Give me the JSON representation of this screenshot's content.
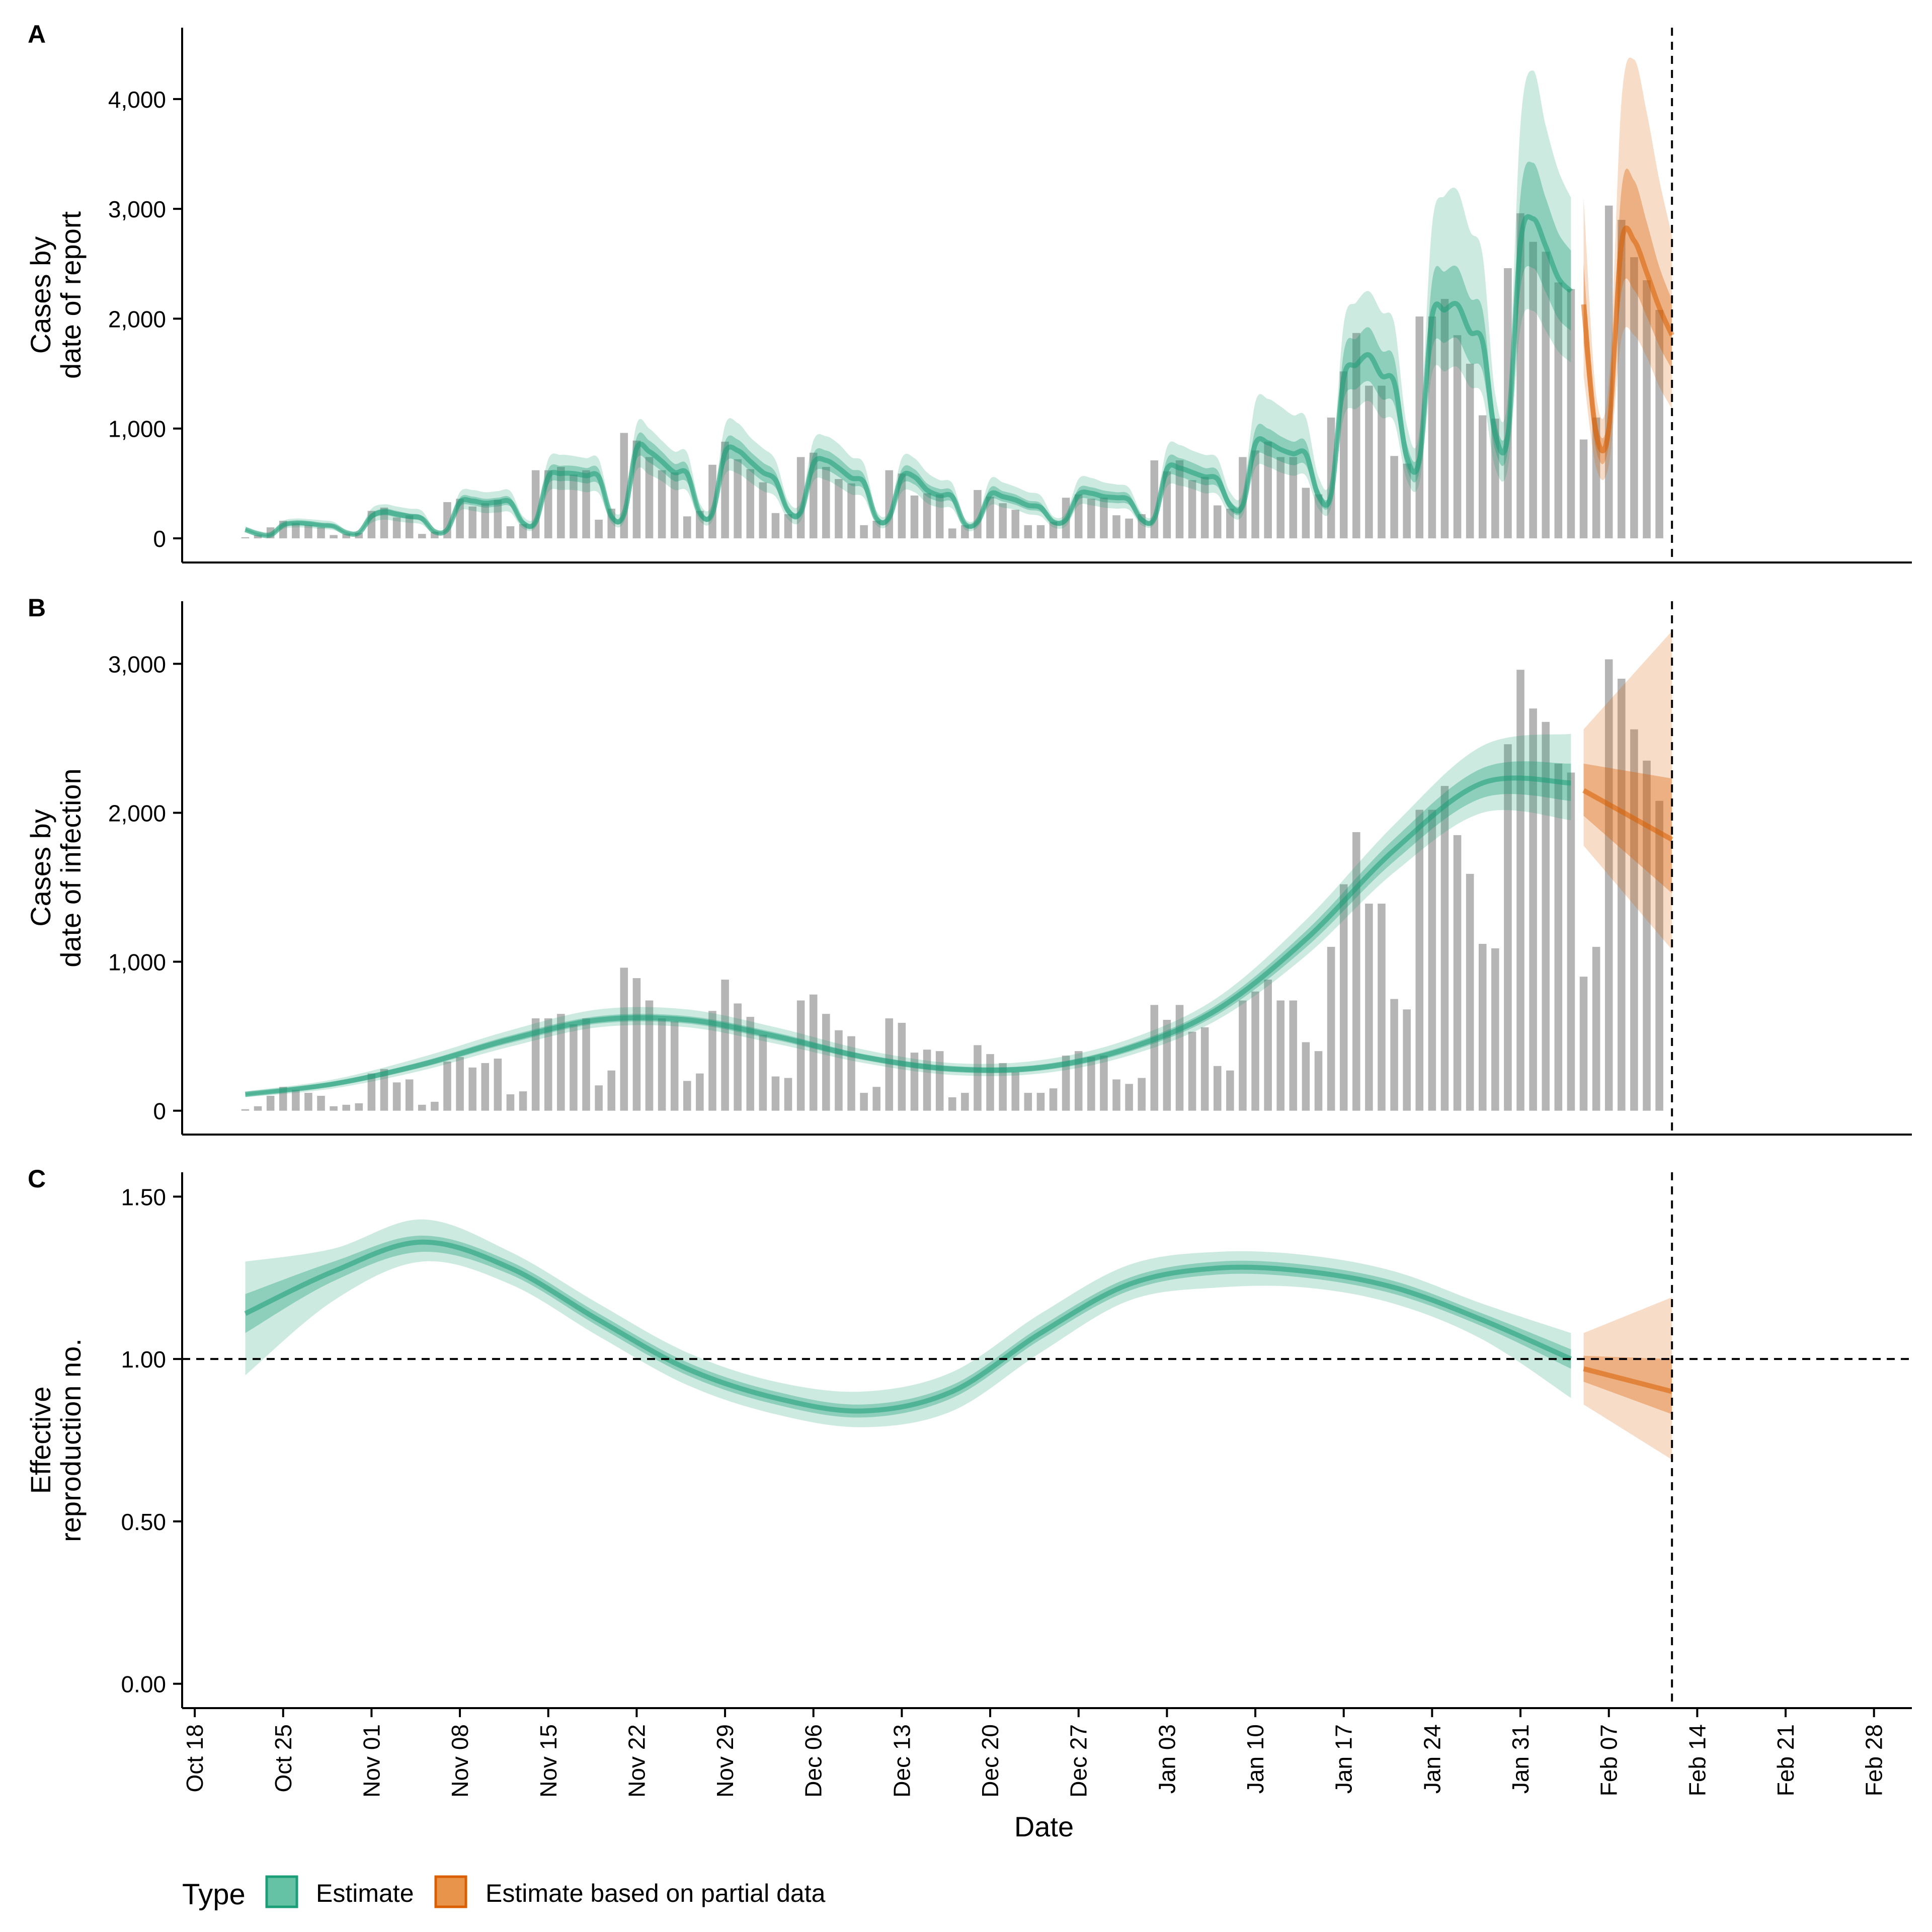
{
  "figure": {
    "xlabel": "Date",
    "legend": {
      "title": "Type",
      "position": "bottom-left",
      "items": [
        {
          "label": "Estimate",
          "fill": "#66c2a5",
          "stroke": "#1b9e77"
        },
        {
          "label": "Estimate based on partial data",
          "fill": "#e8944a",
          "stroke": "#d95f02"
        }
      ]
    },
    "colors": {
      "estimate": "#1b9e77",
      "partial": "#d95f02",
      "bars": "#b5b5b5"
    },
    "x_ticks": [
      "Oct 18",
      "Oct 25",
      "Nov 01",
      "Nov 08",
      "Nov 15",
      "Nov 22",
      "Nov 29",
      "Dec 06",
      "Dec 13",
      "Dec 20",
      "Dec 27",
      "Jan 03",
      "Jan 10",
      "Jan 17",
      "Jan 24",
      "Jan 31",
      "Feb 07",
      "Feb 14",
      "Feb 21",
      "Feb 28"
    ],
    "x_tick_dates": [
      "2020-10-18",
      "2020-10-25",
      "2020-11-01",
      "2020-11-08",
      "2020-11-15",
      "2020-11-22",
      "2020-11-29",
      "2020-12-06",
      "2020-12-13",
      "2020-12-20",
      "2020-12-27",
      "2021-01-03",
      "2021-01-10",
      "2021-01-17",
      "2021-01-24",
      "2021-01-31",
      "2021-02-07",
      "2021-02-14",
      "2021-02-21",
      "2021-02-28"
    ],
    "x_range": [
      "2020-10-17",
      "2021-03-03"
    ],
    "vline_date": "2021-02-12",
    "data_start": "2020-10-22",
    "estimate_end": "2021-02-04",
    "partial_start": "2021-02-05"
  },
  "chart_data": [
    {
      "panel": "A",
      "type": "bar",
      "ylabel": [
        "Cases by",
        "date of report"
      ],
      "ylim": [
        -220,
        4650
      ],
      "y_ticks": [
        0,
        1000,
        2000,
        3000,
        4000
      ],
      "y_tick_labels": [
        "0",
        "1,000",
        "2,000",
        "3,000",
        "4,000"
      ],
      "reported_cases": [
        10,
        30,
        100,
        160,
        140,
        120,
        100,
        30,
        40,
        50,
        250,
        280,
        190,
        210,
        40,
        60,
        330,
        360,
        290,
        320,
        350,
        110,
        130,
        620,
        620,
        650,
        580,
        620,
        170,
        270,
        960,
        890,
        740,
        620,
        600,
        200,
        250,
        670,
        880,
        720,
        630,
        510,
        230,
        220,
        740,
        780,
        650,
        540,
        500,
        120,
        160,
        620,
        590,
        390,
        410,
        400,
        90,
        120,
        440,
        380,
        320,
        260,
        120,
        120,
        150,
        370,
        400,
        360,
        370,
        210,
        180,
        220,
        710,
        610,
        710,
        530,
        560,
        300,
        270,
        740,
        800,
        880,
        740,
        740,
        460,
        400,
        1100,
        1520,
        1870,
        1390,
        1390,
        750,
        680,
        2020,
        2020,
        2180,
        1850,
        1590,
        1120,
        1090,
        2460,
        2960,
        2700,
        2610,
        2330,
        2270,
        900,
        1100,
        3030,
        2900,
        2560,
        2350,
        2080
      ],
      "median_estimate": [
        80,
        40,
        30,
        120,
        140,
        135,
        120,
        110,
        50,
        50,
        200,
        240,
        220,
        200,
        180,
        60,
        80,
        330,
        340,
        320,
        330,
        330,
        140,
        150,
        560,
        590,
        590,
        570,
        560,
        200,
        220,
        820,
        790,
        700,
        600,
        590,
        230,
        230,
        780,
        800,
        700,
        600,
        530,
        250,
        240,
        680,
        710,
        640,
        550,
        510,
        180,
        190,
        560,
        560,
        440,
        390,
        380,
        130,
        150,
        400,
        380,
        350,
        300,
        280,
        150,
        170,
        400,
        410,
        380,
        370,
        350,
        170,
        180,
        630,
        640,
        600,
        560,
        540,
        300,
        300,
        860,
        870,
        810,
        770,
        770,
        390,
        400,
        1460,
        1580,
        1670,
        1480,
        1420,
        740,
        720,
        2020,
        2080,
        2130,
        1880,
        1790,
        950,
        940,
        2690,
        2910,
        2660,
        2370,
        2250,
        2130,
        950,
        1000,
        2680,
        2710,
        2420,
        2100,
        1850
      ],
      "estimate_bands": {
        "outer_upper": [
          110,
          70,
          60,
          160,
          180,
          175,
          165,
          150,
          80,
          80,
          270,
          310,
          290,
          270,
          250,
          90,
          110,
          420,
          440,
          420,
          430,
          430,
          200,
          210,
          720,
          760,
          750,
          730,
          720,
          280,
          300,
          1040,
          1000,
          890,
          790,
          780,
          320,
          320,
          1030,
          1050,
          920,
          820,
          710,
          340,
          330,
          890,
          930,
          860,
          740,
          680,
          250,
          250,
          730,
          730,
          600,
          530,
          500,
          180,
          200,
          540,
          510,
          470,
          420,
          390,
          200,
          230,
          540,
          550,
          510,
          490,
          460,
          230,
          240,
          830,
          850,
          800,
          760,
          730,
          420,
          420,
          1240,
          1270,
          1200,
          1120,
          1100,
          560,
          570,
          1950,
          2150,
          2250,
          2060,
          1960,
          1030,
          980,
          2850,
          3120,
          3170,
          2800,
          2580,
          1310,
          1290,
          3770,
          4260,
          3760,
          3350,
          3100,
          3100,
          1300,
          1420,
          3980,
          4360,
          3880,
          3260,
          2760
        ],
        "outer_lower": [
          55,
          20,
          15,
          85,
          100,
          95,
          85,
          75,
          30,
          30,
          140,
          170,
          155,
          140,
          125,
          35,
          55,
          250,
          250,
          230,
          235,
          235,
          90,
          100,
          420,
          440,
          440,
          420,
          410,
          140,
          150,
          620,
          580,
          520,
          440,
          430,
          160,
          160,
          580,
          590,
          510,
          430,
          380,
          170,
          160,
          520,
          530,
          470,
          400,
          370,
          120,
          130,
          420,
          420,
          320,
          280,
          270,
          80,
          100,
          300,
          280,
          260,
          220,
          200,
          100,
          110,
          300,
          300,
          280,
          270,
          260,
          120,
          130,
          470,
          480,
          450,
          410,
          400,
          210,
          210,
          640,
          650,
          600,
          570,
          570,
          270,
          280,
          1100,
          1180,
          1250,
          1100,
          1060,
          530,
          510,
          1500,
          1520,
          1560,
          1380,
          1300,
          640,
          640,
          1920,
          2070,
          1890,
          1700,
          1600,
          1480,
          640,
          670,
          1820,
          1850,
          1650,
          1380,
          1180
        ],
        "inner_upper": [
          90,
          50,
          40,
          135,
          155,
          150,
          135,
          125,
          60,
          60,
          225,
          270,
          250,
          225,
          205,
          70,
          90,
          370,
          380,
          360,
          370,
          370,
          165,
          175,
          630,
          660,
          660,
          640,
          630,
          230,
          250,
          920,
          890,
          790,
          680,
          670,
          260,
          260,
          880,
          900,
          790,
          690,
          600,
          285,
          275,
          770,
          800,
          730,
          630,
          580,
          210,
          215,
          630,
          630,
          500,
          450,
          430,
          150,
          170,
          460,
          430,
          400,
          345,
          320,
          170,
          190,
          455,
          465,
          435,
          420,
          400,
          195,
          205,
          720,
          730,
          690,
          640,
          620,
          345,
          345,
          990,
          1000,
          930,
          880,
          880,
          450,
          460,
          1690,
          1820,
          1920,
          1710,
          1640,
          860,
          830,
          2340,
          2430,
          2470,
          2190,
          2080,
          1090,
          1080,
          3120,
          3420,
          3100,
          2780,
          2620,
          2500,
          1090,
          1160,
          3170,
          3260,
          2880,
          2470,
          2170
        ],
        "inner_lower": [
          70,
          30,
          22,
          105,
          120,
          115,
          105,
          95,
          40,
          40,
          175,
          210,
          190,
          175,
          155,
          50,
          70,
          290,
          300,
          280,
          290,
          290,
          115,
          125,
          490,
          520,
          520,
          500,
          490,
          170,
          185,
          720,
          690,
          610,
          520,
          510,
          200,
          200,
          680,
          700,
          610,
          520,
          460,
          215,
          205,
          590,
          620,
          560,
          480,
          445,
          150,
          160,
          490,
          490,
          380,
          335,
          330,
          110,
          125,
          350,
          335,
          305,
          260,
          240,
          125,
          140,
          350,
          355,
          330,
          320,
          305,
          145,
          155,
          550,
          560,
          520,
          485,
          470,
          255,
          255,
          740,
          750,
          700,
          665,
          665,
          335,
          345,
          1250,
          1360,
          1430,
          1270,
          1220,
          630,
          610,
          1720,
          1780,
          1820,
          1600,
          1520,
          800,
          800,
          2280,
          2460,
          2240,
          2000,
          1890,
          1780,
          800,
          850,
          2250,
          2260,
          2020,
          1750,
          1540
        ]
      },
      "bar_color": "#b5b5b5"
    },
    {
      "panel": "B",
      "type": "bar",
      "ylabel": [
        "Cases by",
        "date of infection"
      ],
      "ylim": [
        -160,
        3420
      ],
      "y_ticks": [
        0,
        1000,
        2000,
        3000
      ],
      "y_tick_labels": [
        "0",
        "1,000",
        "2,000",
        "3,000"
      ],
      "bars_note": "same reported cases as panel A",
      "smooth_estimate": {
        "dates": [
          "2020-10-22",
          "2020-10-29",
          "2020-11-05",
          "2020-11-12",
          "2020-11-19",
          "2020-11-26",
          "2020-12-03",
          "2020-12-10",
          "2020-12-17",
          "2020-12-24",
          "2020-12-31",
          "2021-01-07",
          "2021-01-14",
          "2021-01-21",
          "2021-01-28",
          "2021-02-04"
        ],
        "median": [
          110,
          180,
          310,
          480,
          610,
          610,
          500,
          360,
          280,
          290,
          420,
          680,
          1150,
          1750,
          2200,
          2200
        ],
        "outer_lower": [
          90,
          150,
          270,
          430,
          560,
          560,
          450,
          320,
          240,
          250,
          370,
          610,
          1040,
          1600,
          2000,
          1950
        ],
        "outer_upper": [
          130,
          210,
          360,
          540,
          680,
          680,
          560,
          410,
          320,
          340,
          480,
          760,
          1280,
          1920,
          2450,
          2530
        ],
        "inner_lower": [
          100,
          165,
          290,
          455,
          585,
          585,
          475,
          340,
          260,
          270,
          395,
          645,
          1095,
          1675,
          2100,
          2080
        ],
        "inner_upper": [
          120,
          195,
          330,
          505,
          635,
          635,
          525,
          380,
          300,
          310,
          445,
          715,
          1205,
          1825,
          2300,
          2330
        ]
      },
      "partial_estimate": {
        "dates": [
          "2021-02-05",
          "2021-02-12"
        ],
        "median": [
          2150,
          1820
        ],
        "outer_lower": [
          1780,
          1080
        ],
        "outer_upper": [
          2560,
          3220
        ],
        "inner_lower": [
          1980,
          1460
        ],
        "inner_upper": [
          2330,
          2230
        ]
      }
    },
    {
      "panel": "C",
      "type": "line",
      "ylabel": [
        "Effective",
        "reproduction no."
      ],
      "ylim": [
        -0.075,
        1.575
      ],
      "y_ticks": [
        0,
        0.5,
        1.0,
        1.5
      ],
      "y_tick_labels": [
        "0.00",
        "0.50",
        "1.00",
        "1.50"
      ],
      "hline": 1.0,
      "estimate": {
        "dates": [
          "2020-10-22",
          "2020-10-29",
          "2020-11-05",
          "2020-11-12",
          "2020-11-19",
          "2020-11-26",
          "2020-12-03",
          "2020-12-10",
          "2020-12-17",
          "2020-12-24",
          "2020-12-31",
          "2021-01-07",
          "2021-01-14",
          "2021-01-21",
          "2021-01-28",
          "2021-02-04"
        ],
        "median": [
          1.14,
          1.27,
          1.36,
          1.28,
          1.12,
          0.97,
          0.88,
          0.84,
          0.9,
          1.08,
          1.23,
          1.28,
          1.27,
          1.22,
          1.12,
          1.0
        ],
        "outer_lower": [
          0.95,
          1.18,
          1.3,
          1.23,
          1.07,
          0.92,
          0.83,
          0.79,
          0.84,
          1.02,
          1.18,
          1.22,
          1.22,
          1.17,
          1.06,
          0.88
        ],
        "outer_upper": [
          1.3,
          1.34,
          1.43,
          1.33,
          1.17,
          1.02,
          0.93,
          0.9,
          0.96,
          1.14,
          1.29,
          1.33,
          1.32,
          1.27,
          1.17,
          1.08
        ],
        "inner_lower": [
          1.08,
          1.24,
          1.33,
          1.26,
          1.1,
          0.95,
          0.86,
          0.82,
          0.88,
          1.06,
          1.21,
          1.26,
          1.25,
          1.2,
          1.1,
          0.97
        ],
        "inner_upper": [
          1.2,
          1.3,
          1.38,
          1.3,
          1.14,
          0.99,
          0.9,
          0.86,
          0.92,
          1.1,
          1.25,
          1.3,
          1.29,
          1.24,
          1.14,
          1.03
        ]
      },
      "partial_estimate": {
        "dates": [
          "2021-02-05",
          "2021-02-12"
        ],
        "median": [
          0.97,
          0.9
        ],
        "outer_lower": [
          0.86,
          0.69
        ],
        "outer_upper": [
          1.08,
          1.19
        ],
        "inner_lower": [
          0.93,
          0.83
        ],
        "inner_upper": [
          1.01,
          1.0
        ]
      }
    }
  ]
}
